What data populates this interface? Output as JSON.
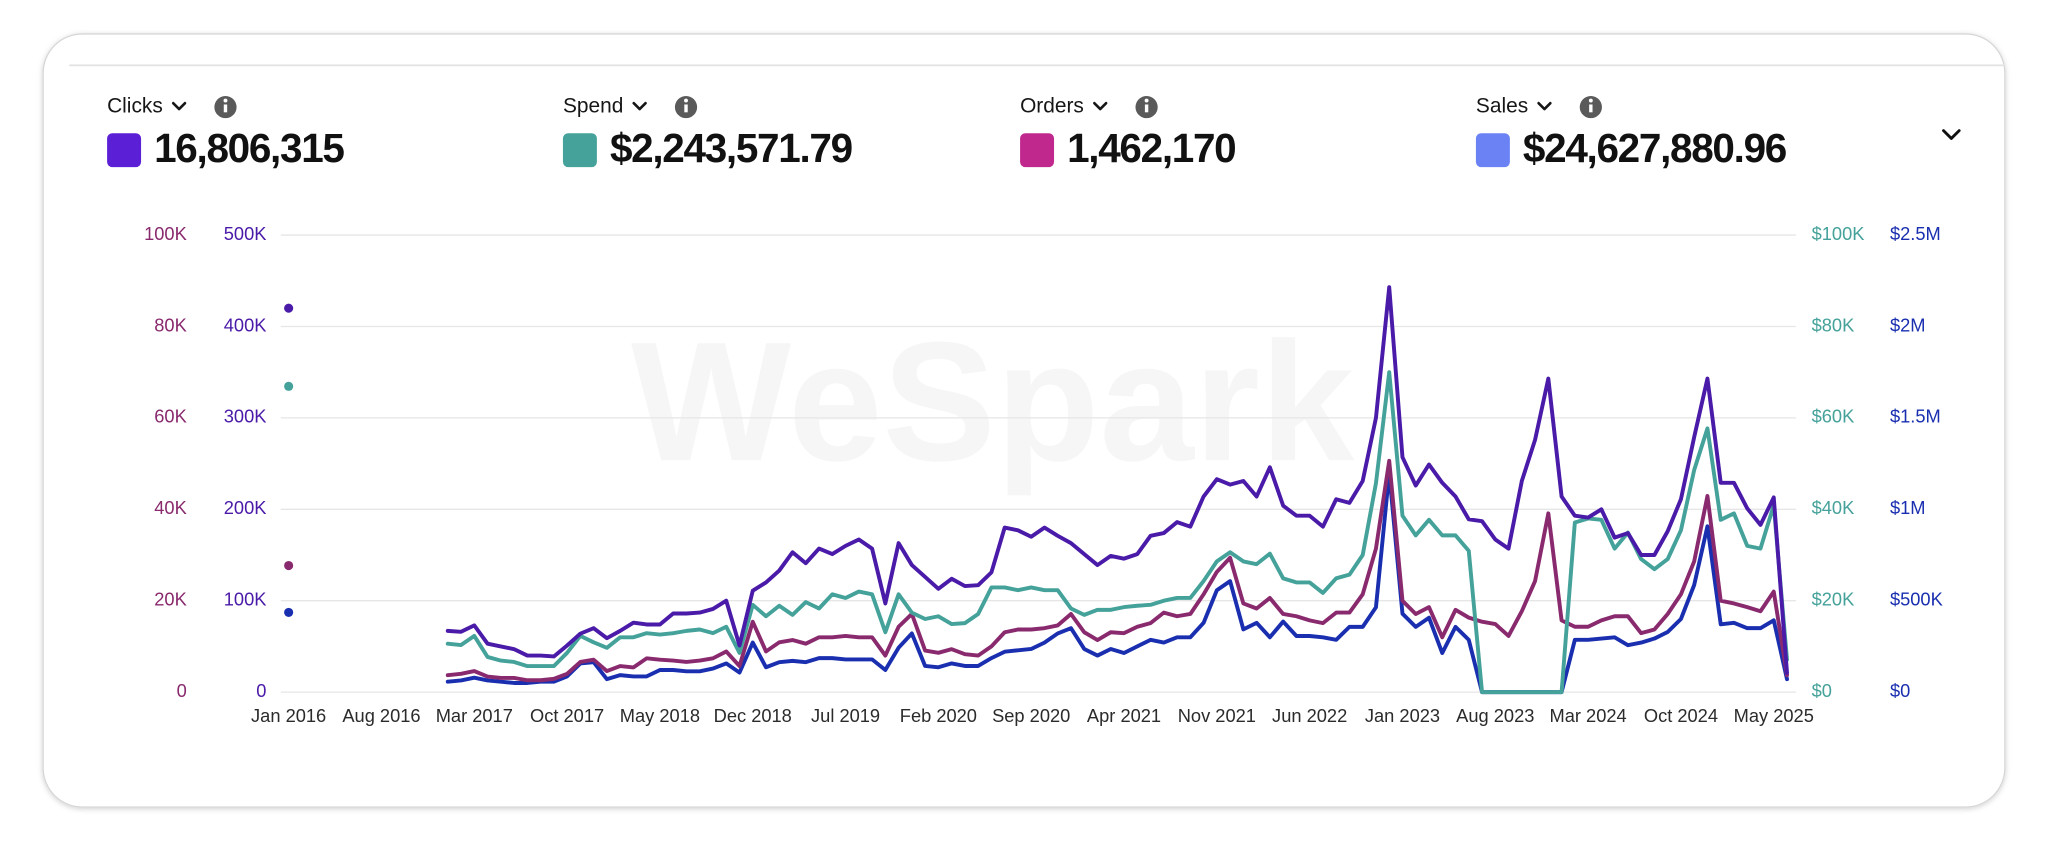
{
  "chart_data": {
    "type": "line",
    "watermark": "WeSpark",
    "grid": true,
    "categories": [
      "Jan 2016",
      null,
      null,
      null,
      null,
      null,
      null,
      "Aug 2016",
      null,
      null,
      null,
      null,
      null,
      null,
      "Mar 2017",
      null,
      null,
      null,
      null,
      null,
      null,
      "Oct 2017",
      null,
      null,
      null,
      null,
      null,
      null,
      "May 2018",
      null,
      null,
      null,
      null,
      null,
      null,
      "Dec 2018",
      null,
      null,
      null,
      null,
      null,
      null,
      "Jul 2019",
      null,
      null,
      null,
      null,
      null,
      null,
      "Feb 2020",
      null,
      null,
      null,
      null,
      null,
      null,
      "Sep 2020",
      null,
      null,
      null,
      null,
      null,
      null,
      "Apr 2021",
      null,
      null,
      null,
      null,
      null,
      null,
      "Nov 2021",
      null,
      null,
      null,
      null,
      null,
      null,
      "Jun 2022",
      null,
      null,
      null,
      null,
      null,
      null,
      "Jan 2023",
      null,
      null,
      null,
      null,
      null,
      null,
      "Aug 2023",
      null,
      null,
      null,
      null,
      null,
      null,
      "Mar 2024",
      null,
      null,
      null,
      null,
      null,
      null,
      "Oct 2024",
      null,
      null,
      null,
      null,
      null,
      null,
      "May 2025",
      null
    ],
    "series": [
      {
        "name": "Clicks",
        "total": "16,806,315",
        "swatch": "#5b1fd6",
        "color": "#4a1aa8",
        "axis": "left-inner",
        "ylim": [
          0,
          500000
        ],
        "yticks": [
          0,
          {
            "value": 100000,
            "label": "100K"
          },
          {
            "value": 200000,
            "label": "200K"
          },
          {
            "value": 300000,
            "label": "300K"
          },
          {
            "value": 400000,
            "label": "400K"
          },
          {
            "value": 500000,
            "label": "500K"
          }
        ],
        "values": [
          420000,
          null,
          null,
          null,
          null,
          null,
          null,
          null,
          null,
          null,
          null,
          null,
          67000,
          66000,
          73000,
          53000,
          50000,
          47000,
          40000,
          40000,
          39000,
          51000,
          64000,
          70000,
          59000,
          67000,
          76000,
          74000,
          74000,
          86000,
          86000,
          87000,
          91000,
          100000,
          51000,
          111000,
          120000,
          133000,
          153000,
          141000,
          157000,
          151000,
          160000,
          167000,
          157000,
          97000,
          163000,
          139000,
          126000,
          113000,
          124000,
          116000,
          117000,
          131000,
          180000,
          177000,
          170000,
          180000,
          171000,
          163000,
          151000,
          139000,
          149000,
          146000,
          151000,
          171000,
          174000,
          186000,
          181000,
          214000,
          233000,
          227000,
          231000,
          214000,
          246000,
          204000,
          193000,
          193000,
          181000,
          211000,
          207000,
          231000,
          300000,
          443000,
          257000,
          226000,
          249000,
          229000,
          214000,
          189000,
          187000,
          167000,
          157000,
          231000,
          276000,
          343000,
          214000,
          193000,
          191000,
          200000,
          169000,
          174000,
          150000,
          150000,
          176000,
          211000,
          279000,
          343000,
          229000,
          229000,
          201000,
          183000,
          213000,
          21000
        ]
      },
      {
        "name": "Spend",
        "total": "$2,243,571.79",
        "swatch": "#45a29a",
        "color": "#45a29a",
        "axis": "right-inner",
        "ylim": [
          0,
          100000
        ],
        "yticks": [
          {
            "value": 0,
            "label": "$0"
          },
          {
            "value": 20000,
            "label": "$20K"
          },
          {
            "value": 40000,
            "label": "$40K"
          },
          {
            "value": 60000,
            "label": "$60K"
          },
          {
            "value": 80000,
            "label": "$80K"
          },
          {
            "value": 100000,
            "label": "$100K"
          }
        ],
        "values": [
          66900,
          null,
          null,
          null,
          null,
          null,
          null,
          null,
          null,
          null,
          null,
          null,
          10600,
          10300,
          12300,
          7700,
          6900,
          6600,
          5700,
          5700,
          5700,
          8600,
          12300,
          10900,
          9700,
          12000,
          12000,
          12900,
          12600,
          12900,
          13400,
          13700,
          12900,
          14300,
          8600,
          19100,
          16600,
          18900,
          16900,
          19700,
          18300,
          21400,
          20600,
          22000,
          21400,
          13100,
          21400,
          17400,
          16000,
          16600,
          14900,
          15100,
          17100,
          22900,
          22900,
          22300,
          22900,
          22300,
          22300,
          18300,
          16900,
          18000,
          18000,
          18600,
          18900,
          19100,
          20000,
          20600,
          20600,
          24300,
          28600,
          30600,
          28600,
          28000,
          30300,
          24900,
          24000,
          24000,
          21700,
          24900,
          25700,
          30000,
          45700,
          70000,
          38600,
          34300,
          37700,
          34300,
          34300,
          30900,
          0,
          0,
          0,
          0,
          0,
          0,
          0,
          37100,
          38000,
          37700,
          31400,
          34900,
          29100,
          26900,
          29100,
          35400,
          48600,
          57700,
          37700,
          39100,
          32000,
          31400,
          40900,
          7100
        ]
      },
      {
        "name": "Orders",
        "total": "1,462,170",
        "swatch": "#c0288e",
        "color": "#8a2a6e",
        "axis": "left-outer",
        "ylim": [
          0,
          100000
        ],
        "yticks": [
          0,
          {
            "value": 20000,
            "label": "20K"
          },
          {
            "value": 40000,
            "label": "40K"
          },
          {
            "value": 60000,
            "label": "60K"
          },
          {
            "value": 80000,
            "label": "80K"
          },
          {
            "value": 100000,
            "label": "100K"
          }
        ],
        "values": [
          27700,
          null,
          null,
          null,
          null,
          null,
          null,
          null,
          null,
          null,
          null,
          null,
          3700,
          4000,
          4600,
          3400,
          3100,
          3100,
          2600,
          2600,
          2900,
          4000,
          6600,
          7100,
          4600,
          5700,
          5400,
          7400,
          7100,
          6900,
          6600,
          6900,
          7400,
          8900,
          5700,
          15400,
          8900,
          10900,
          11400,
          10600,
          12000,
          12000,
          12300,
          12000,
          12000,
          8000,
          14300,
          17100,
          9100,
          8600,
          9400,
          8300,
          8000,
          10000,
          13100,
          13700,
          13700,
          14000,
          14600,
          17100,
          13100,
          11400,
          13100,
          12900,
          14300,
          15100,
          17400,
          16600,
          17100,
          21400,
          26300,
          29400,
          19400,
          18300,
          20600,
          17100,
          16600,
          15700,
          15100,
          17400,
          17400,
          21400,
          31400,
          50600,
          20000,
          17100,
          18600,
          12000,
          18000,
          16300,
          15400,
          14900,
          12300,
          17700,
          24300,
          39100,
          15700,
          14300,
          14300,
          15700,
          16600,
          16600,
          12900,
          13700,
          17100,
          21400,
          28600,
          42900,
          20000,
          19400,
          18600,
          17700,
          22000,
          3700
        ]
      },
      {
        "name": "Sales",
        "total": "$24,627,880.96",
        "swatch": "#6b82f5",
        "color": "#1a2fb0",
        "axis": "right-outer",
        "ylim": [
          0,
          2500000
        ],
        "yticks": [
          {
            "value": 0,
            "label": "$0"
          },
          {
            "value": 500000,
            "label": "$500K"
          },
          {
            "value": 1000000,
            "label": "$1M"
          },
          {
            "value": 1500000,
            "label": "$1.5M"
          },
          {
            "value": 2000000,
            "label": "$2M"
          },
          {
            "value": 2500000,
            "label": "$2.5M"
          }
        ],
        "values": [
          436000,
          null,
          null,
          null,
          null,
          null,
          null,
          null,
          null,
          null,
          null,
          null,
          57000,
          64000,
          79000,
          64000,
          57000,
          50000,
          50000,
          57000,
          57000,
          86000,
          157000,
          164000,
          71000,
          93000,
          86000,
          86000,
          121000,
          121000,
          114000,
          114000,
          129000,
          157000,
          107000,
          271000,
          136000,
          164000,
          171000,
          164000,
          186000,
          186000,
          179000,
          179000,
          179000,
          121000,
          243000,
          321000,
          143000,
          136000,
          157000,
          143000,
          143000,
          186000,
          221000,
          229000,
          236000,
          271000,
          321000,
          350000,
          236000,
          200000,
          236000,
          214000,
          250000,
          286000,
          271000,
          300000,
          300000,
          379000,
          557000,
          607000,
          343000,
          379000,
          300000,
          386000,
          307000,
          307000,
          300000,
          286000,
          357000,
          357000,
          464000,
          1200000,
          429000,
          357000,
          407000,
          214000,
          357000,
          286000,
          0,
          0,
          0,
          0,
          0,
          0,
          0,
          286000,
          286000,
          293000,
          300000,
          257000,
          271000,
          293000,
          329000,
          400000,
          586000,
          907000,
          371000,
          379000,
          350000,
          350000,
          393000,
          71000
        ]
      }
    ]
  }
}
